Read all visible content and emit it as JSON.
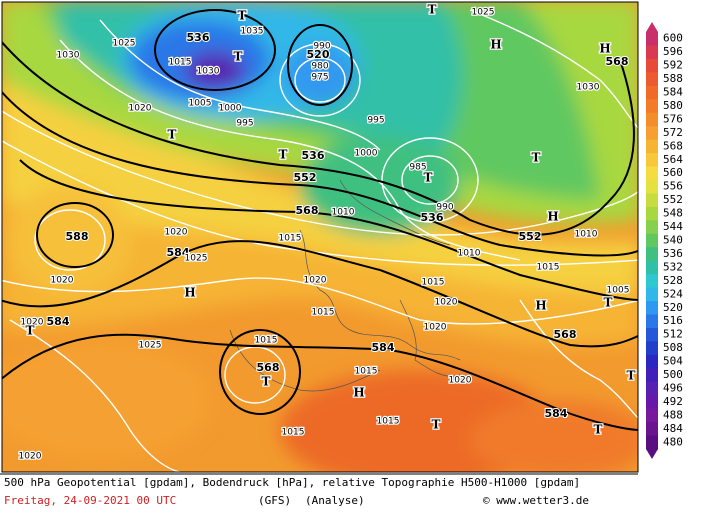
{
  "colorbar": {
    "ticks": [
      600,
      596,
      592,
      588,
      584,
      580,
      576,
      572,
      568,
      564,
      560,
      556,
      552,
      548,
      544,
      540,
      536,
      532,
      528,
      524,
      520,
      516,
      512,
      508,
      504,
      500,
      496,
      492,
      488,
      484,
      480
    ],
    "colors": [
      "#c8306c",
      "#d83a50",
      "#e84a3a",
      "#ec5a30",
      "#f06a28",
      "#f27c2a",
      "#f38e2c",
      "#f5a030",
      "#f6b434",
      "#f7c83a",
      "#f5dc40",
      "#e4e240",
      "#c8dc40",
      "#a8d840",
      "#86d050",
      "#60c860",
      "#40c080",
      "#30c0a8",
      "#30c8d0",
      "#30b8e8",
      "#3098f0",
      "#2a78e8",
      "#2458d8",
      "#2040c8",
      "#2a28c0",
      "#4020b8",
      "#5820b0",
      "#6818a8",
      "#78189c",
      "#6a1490",
      "#581080"
    ]
  },
  "geopotential_labels": [
    536,
    520,
    568,
    536,
    552,
    568,
    588,
    584,
    536,
    552,
    584,
    568,
    584,
    568,
    584
  ],
  "isobar_labels": [
    1025,
    1030,
    1025,
    1015,
    1035,
    1030,
    1020,
    1005,
    1000,
    995,
    990,
    980,
    975,
    995,
    1000,
    985,
    990,
    1010,
    1015,
    1010,
    1015,
    1020,
    1020,
    1025,
    1020,
    1015,
    1020,
    1015,
    1020,
    1010,
    1005,
    1020,
    1015,
    1015,
    1025,
    1020,
    1015,
    1015,
    1020,
    1030
  ],
  "pressure_centers": [
    "T",
    "T",
    "T",
    "H",
    "H",
    "T",
    "T",
    "T",
    "T",
    "H",
    "H",
    "T",
    "H",
    "T",
    "T",
    "H",
    "T",
    "T",
    "T"
  ],
  "footer": {
    "caption": "500 hPa Geopotential [gpdam], Bodendruck [hPa], relative Topographie H500-H1000 [gpdam]",
    "date": "Freitag, 24-09-2021  00 UTC",
    "model": "(GFS)",
    "run": "(Analyse)",
    "credit": "© www.wetter3.de"
  }
}
